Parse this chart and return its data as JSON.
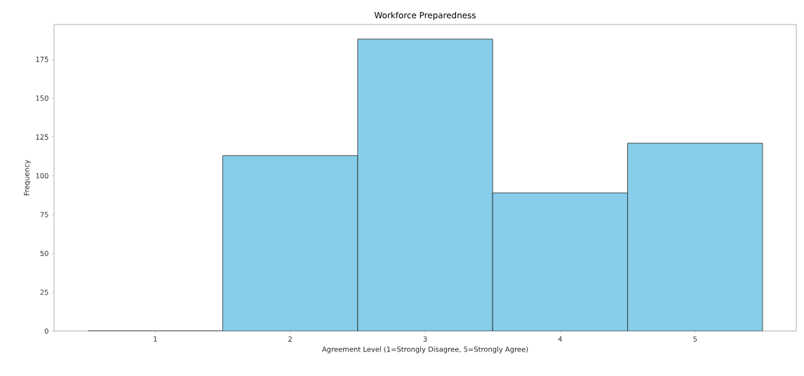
{
  "chart_data": {
    "type": "histogram",
    "title": "Workforce Preparedness",
    "xlabel": "Agreement Level (1=Strongly Disagree, 5=Strongly Agree)",
    "ylabel": "Frequency",
    "bins": [
      0.5,
      1.5,
      2.5,
      3.5,
      4.5,
      5.5
    ],
    "values": [
      0,
      113,
      188,
      89,
      121
    ],
    "color": "#87ceeb",
    "xlim": [
      0.25,
      5.75
    ],
    "ylim": [
      0,
      197.4
    ],
    "xticks": [
      1,
      2,
      3,
      4,
      5
    ],
    "yticks": [
      0,
      25,
      50,
      75,
      100,
      125,
      150,
      175
    ],
    "grid": false
  }
}
